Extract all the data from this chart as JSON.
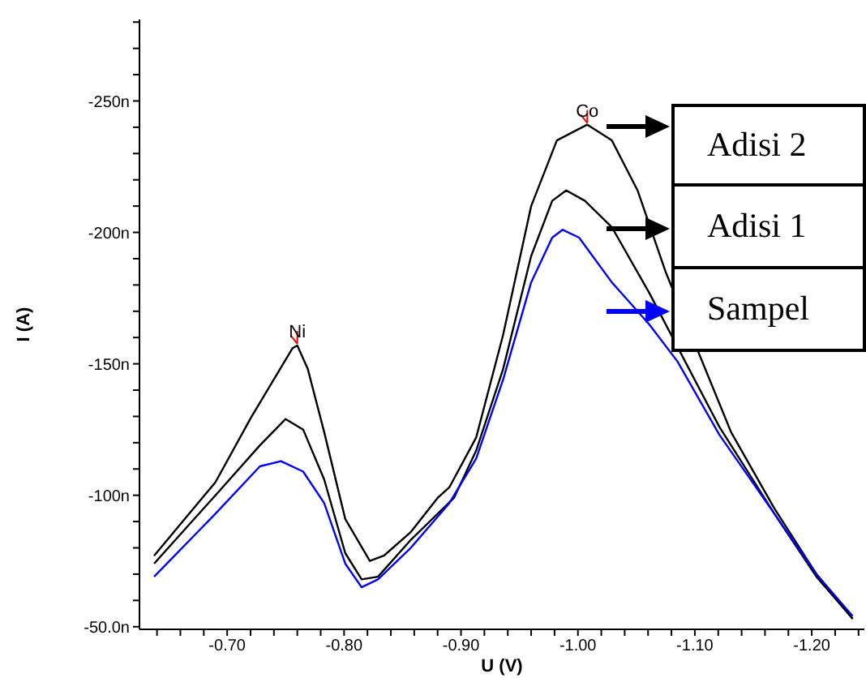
{
  "chart_data": {
    "type": "line",
    "xlabel": "U (V)",
    "ylabel": "I (A)",
    "xlim": [
      -0.625,
      -1.245
    ],
    "ylim": [
      -49,
      -281
    ],
    "xticks": [
      {
        "value": -0.64,
        "label": null
      },
      {
        "value": -0.66,
        "label": null
      },
      {
        "value": -0.68,
        "label": null
      },
      {
        "value": -0.7,
        "label": "-0.70"
      },
      {
        "value": -0.72,
        "label": null
      },
      {
        "value": -0.74,
        "label": null
      },
      {
        "value": -0.76,
        "label": null
      },
      {
        "value": -0.78,
        "label": null
      },
      {
        "value": -0.8,
        "label": "-0.80"
      },
      {
        "value": -0.82,
        "label": null
      },
      {
        "value": -0.84,
        "label": null
      },
      {
        "value": -0.86,
        "label": null
      },
      {
        "value": -0.88,
        "label": null
      },
      {
        "value": -0.9,
        "label": "-0.90"
      },
      {
        "value": -0.92,
        "label": null
      },
      {
        "value": -0.94,
        "label": null
      },
      {
        "value": -0.96,
        "label": null
      },
      {
        "value": -0.98,
        "label": null
      },
      {
        "value": -1.0,
        "label": "-1.00"
      },
      {
        "value": -1.02,
        "label": null
      },
      {
        "value": -1.04,
        "label": null
      },
      {
        "value": -1.06,
        "label": null
      },
      {
        "value": -1.08,
        "label": null
      },
      {
        "value": -1.1,
        "label": "-1.10"
      },
      {
        "value": -1.12,
        "label": null
      },
      {
        "value": -1.14,
        "label": null
      },
      {
        "value": -1.16,
        "label": null
      },
      {
        "value": -1.18,
        "label": null
      },
      {
        "value": -1.2,
        "label": "-1.20"
      },
      {
        "value": -1.22,
        "label": null
      },
      {
        "value": -1.24,
        "label": null
      }
    ],
    "yticks": [
      {
        "value": -50,
        "label": "-50.0n"
      },
      {
        "value": -60,
        "label": null
      },
      {
        "value": -70,
        "label": null
      },
      {
        "value": -80,
        "label": null
      },
      {
        "value": -90,
        "label": null
      },
      {
        "value": -100,
        "label": "-100n"
      },
      {
        "value": -110,
        "label": null
      },
      {
        "value": -120,
        "label": null
      },
      {
        "value": -130,
        "label": null
      },
      {
        "value": -140,
        "label": null
      },
      {
        "value": -150,
        "label": "-150n"
      },
      {
        "value": -160,
        "label": null
      },
      {
        "value": -170,
        "label": null
      },
      {
        "value": -180,
        "label": null
      },
      {
        "value": -190,
        "label": null
      },
      {
        "value": -200,
        "label": "-200n"
      },
      {
        "value": -210,
        "label": null
      },
      {
        "value": -220,
        "label": null
      },
      {
        "value": -230,
        "label": null
      },
      {
        "value": -240,
        "label": null
      },
      {
        "value": -250,
        "label": "-250n"
      },
      {
        "value": -260,
        "label": null
      },
      {
        "value": -270,
        "label": null
      },
      {
        "value": -280,
        "label": null
      }
    ],
    "grid": false,
    "legend": "right",
    "marker": "none",
    "line_style": "solid",
    "annotations": [
      {
        "text": "Ni",
        "x": -0.76,
        "y": -157
      },
      {
        "text": "Co",
        "x": -1.008,
        "y": -241
      }
    ],
    "series": [
      {
        "name": "Adisi 2",
        "color": "#000000",
        "x": [
          -0.6375,
          -0.69,
          -0.721,
          -0.756,
          -0.76,
          -0.769,
          -0.783,
          -0.801,
          -0.822,
          -0.834,
          -0.857,
          -0.88,
          -0.89,
          -0.913,
          -0.936,
          -0.96,
          -0.982,
          -1.008,
          -1.029,
          -1.051,
          -1.075,
          -1.099,
          -1.131,
          -1.168,
          -1.204,
          -1.235
        ],
        "values": [
          -77,
          -105,
          -130,
          -156,
          -157,
          -148,
          -124,
          -91,
          -75,
          -77,
          -86,
          -99,
          -103,
          -122,
          -161,
          -210,
          -235,
          -241,
          -235,
          -216,
          -185,
          null,
          -124,
          -95,
          -70,
          -53
        ]
      },
      {
        "name": "Adisi 1",
        "color": "#000000",
        "x": [
          -0.6375,
          -0.69,
          -0.728,
          -0.75,
          -0.765,
          -0.783,
          -0.801,
          -0.815,
          -0.829,
          -0.857,
          -0.894,
          -0.913,
          -0.936,
          -0.96,
          -0.978,
          -0.99,
          -1.006,
          -1.029,
          -1.061,
          -1.085,
          -1.121,
          -1.168,
          -1.204,
          -1.235
        ],
        "values": [
          -74,
          -100,
          -119,
          -129,
          -125,
          -106,
          -78,
          -68,
          -69,
          -83,
          -99,
          -117,
          -148,
          -191,
          -212,
          -216,
          -212,
          -202,
          -177,
          null,
          -126,
          -93,
          -69,
          -53
        ]
      },
      {
        "name": "Sampel",
        "color": "#0000ff",
        "x": [
          -0.6375,
          -0.69,
          -0.728,
          -0.746,
          -0.765,
          -0.783,
          -0.801,
          -0.815,
          -0.829,
          -0.857,
          -0.89,
          -0.913,
          -0.936,
          -0.96,
          -0.978,
          -0.987,
          -1.001,
          -1.029,
          -1.061,
          -1.085,
          -1.121,
          -1.168,
          -1.204,
          -1.235
        ],
        "values": [
          -69,
          -93,
          -111,
          -113,
          -109,
          -97,
          -74,
          -65,
          -68,
          -80,
          -97,
          -114,
          -144,
          -181,
          -198,
          -201,
          -198,
          -181,
          -165,
          -151,
          -123,
          -93,
          -70,
          -54
        ]
      }
    ]
  }
}
